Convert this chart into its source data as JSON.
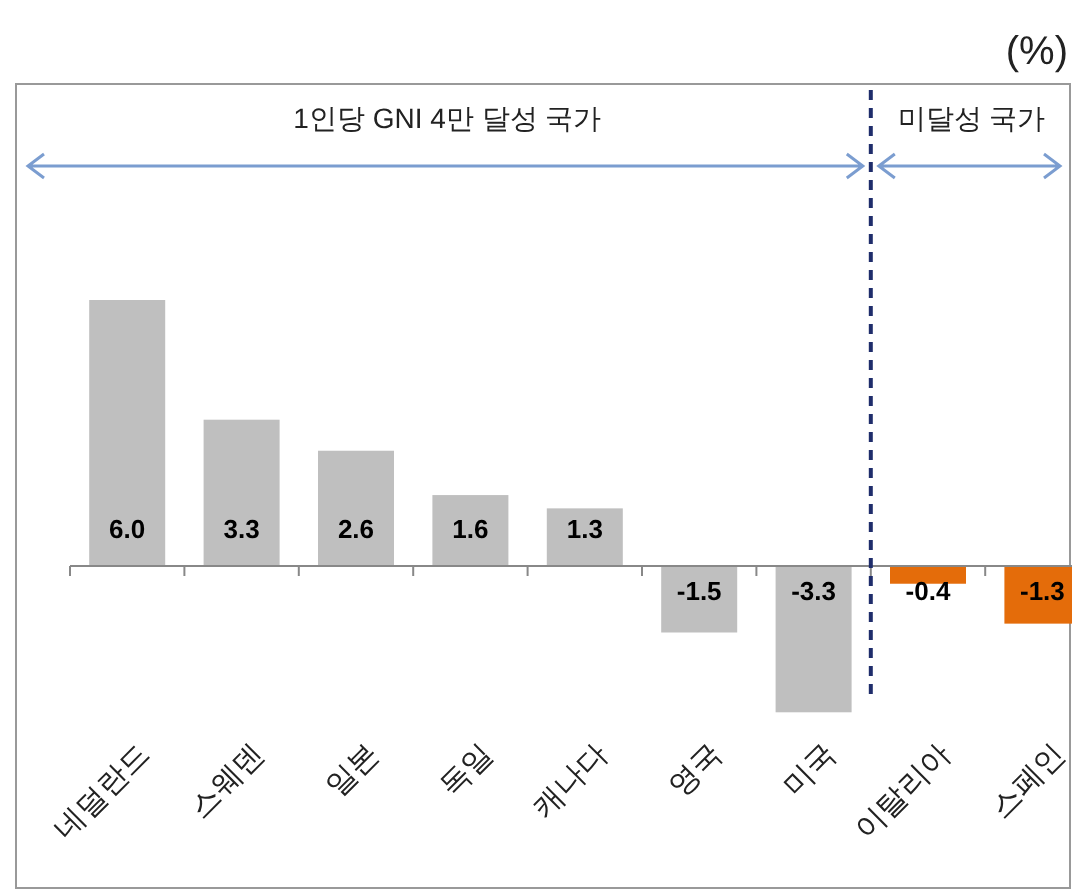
{
  "chart_data": {
    "type": "bar",
    "categories": [
      "네덜란드",
      "스웨덴",
      "일본",
      "독일",
      "캐나다",
      "영국",
      "미국",
      "이탈리아",
      "스페인"
    ],
    "values": [
      6.0,
      3.3,
      2.6,
      1.6,
      1.3,
      -1.5,
      -3.3,
      -0.4,
      -1.3
    ],
    "value_labels": [
      "6.0",
      "3.3",
      "2.6",
      "1.6",
      "1.3",
      "-1.5",
      "-3.3",
      "-0.4",
      "-1.3"
    ],
    "colors": [
      "#bfbfbf",
      "#bfbfbf",
      "#bfbfbf",
      "#bfbfbf",
      "#bfbfbf",
      "#bfbfbf",
      "#bfbfbf",
      "#e46c0a",
      "#e46c0a"
    ],
    "annotations": [
      "(%)",
      "1인당 GNI 4만 달성 국가",
      "미달성 국가"
    ]
  }
}
